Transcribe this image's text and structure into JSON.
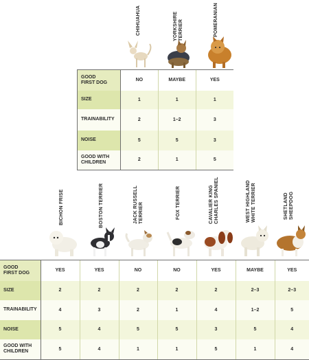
{
  "top": {
    "breeds": [
      "CHIHUAHUA",
      "YORKSHIRE\nTERRIER",
      "POMERANIAN"
    ],
    "rows": [
      {
        "label": "GOOD\nFIRST DOG",
        "values": [
          "NO",
          "MAYBE",
          "YES"
        ]
      },
      {
        "label": "SIZE",
        "values": [
          "1",
          "1",
          "1"
        ]
      },
      {
        "label": "TRAINABILITY",
        "values": [
          "2",
          "1–2",
          "3"
        ]
      },
      {
        "label": "NOISE",
        "values": [
          "5",
          "5",
          "3"
        ]
      },
      {
        "label": "GOOD WITH\nCHILDREN",
        "values": [
          "2",
          "1",
          "5"
        ]
      }
    ]
  },
  "bottom": {
    "breeds": [
      "BICHON FRISE",
      "BOSTON TERRIER",
      "JACK RUSSELL\nTERRIER",
      "FOX TERRIER",
      "CAVALIER KING\nCHARLES SPANIEL",
      "WEST HIGHLAND\nWHITE TERRIER",
      "SHETLAND\nSHEEPDOG"
    ],
    "rows": [
      {
        "label": "GOOD\nFIRST DOG",
        "values": [
          "YES",
          "YES",
          "NO",
          "NO",
          "YES",
          "MAYBE",
          "YES"
        ]
      },
      {
        "label": "SIZE",
        "values": [
          "2",
          "2",
          "2",
          "2",
          "2",
          "2–3",
          "2–3"
        ]
      },
      {
        "label": "TRAINABILITY",
        "values": [
          "4",
          "3",
          "2",
          "1",
          "4",
          "1–2",
          "5"
        ]
      },
      {
        "label": "NOISE",
        "values": [
          "5",
          "4",
          "5",
          "5",
          "3",
          "5",
          "4"
        ]
      },
      {
        "label": "GOOD WITH\nCHILDREN",
        "values": [
          "5",
          "4",
          "1",
          "1",
          "5",
          "1",
          "4"
        ]
      }
    ]
  },
  "colors": {
    "label_bg": "#e6ecbf",
    "row_alt": "#f3f6dc",
    "rule": "#6f6f6f"
  }
}
